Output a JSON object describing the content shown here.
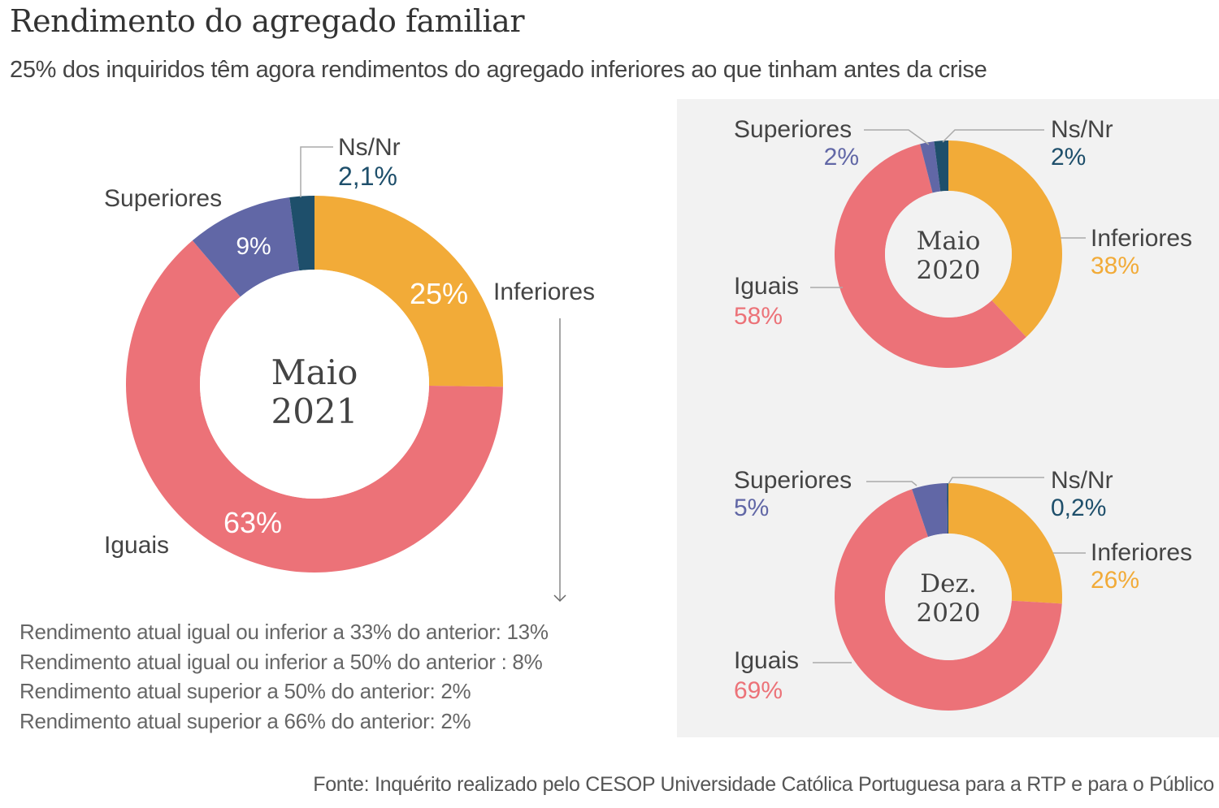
{
  "header": {
    "title": "Rendimento do agregado familiar",
    "subtitle": "25% dos inquiridos têm agora rendimentos do agregado inferiores ao que tinham antes da crise"
  },
  "colors": {
    "Inferiores": "#f2ab38",
    "Iguais": "#ec7278",
    "Superiores": "#6167a6",
    "Ns/Nr": "#1e4f6b",
    "label_text": "#444444",
    "panel_bg": "#f2f2f2"
  },
  "chart_data": [
    {
      "type": "pie",
      "variant": "donut",
      "title": "Maio 2021",
      "center_label": [
        "Maio",
        "2021"
      ],
      "categories": [
        "Inferiores",
        "Iguais",
        "Superiores",
        "Ns/Nr"
      ],
      "values": [
        25,
        63,
        9,
        2.1
      ],
      "value_labels": [
        "25%",
        "63%",
        "9%",
        "2,1%"
      ],
      "legend": "labels beside slices"
    },
    {
      "type": "pie",
      "variant": "donut",
      "title": "Maio 2020",
      "center_label": [
        "Maio",
        "2020"
      ],
      "categories": [
        "Inferiores",
        "Iguais",
        "Superiores",
        "Ns/Nr"
      ],
      "values": [
        38,
        58,
        2,
        2
      ],
      "value_labels": [
        "38%",
        "58%",
        "2%",
        "2%"
      ],
      "legend": "labels beside slices"
    },
    {
      "type": "pie",
      "variant": "donut",
      "title": "Dez. 2020",
      "center_label": [
        "Dez.",
        "2020"
      ],
      "categories": [
        "Inferiores",
        "Iguais",
        "Superiores",
        "Ns/Nr"
      ],
      "values": [
        26,
        69,
        5,
        0.2
      ],
      "value_labels": [
        "26%",
        "69%",
        "5%",
        "0,2%"
      ],
      "legend": "labels beside slices"
    }
  ],
  "breakdown_notes": [
    "Rendimento atual igual ou inferior a 33% do anterior: 13%",
    "Rendimento atual igual ou inferior a 50% do anterior : 8%",
    "Rendimento atual superior a 50% do anterior: 2%",
    "Rendimento atual superior a 66% do anterior: 2%"
  ],
  "source": "Fonte: Inquérito realizado pelo CESOP Universidade Católica Portuguesa para a RTP e para o Público"
}
